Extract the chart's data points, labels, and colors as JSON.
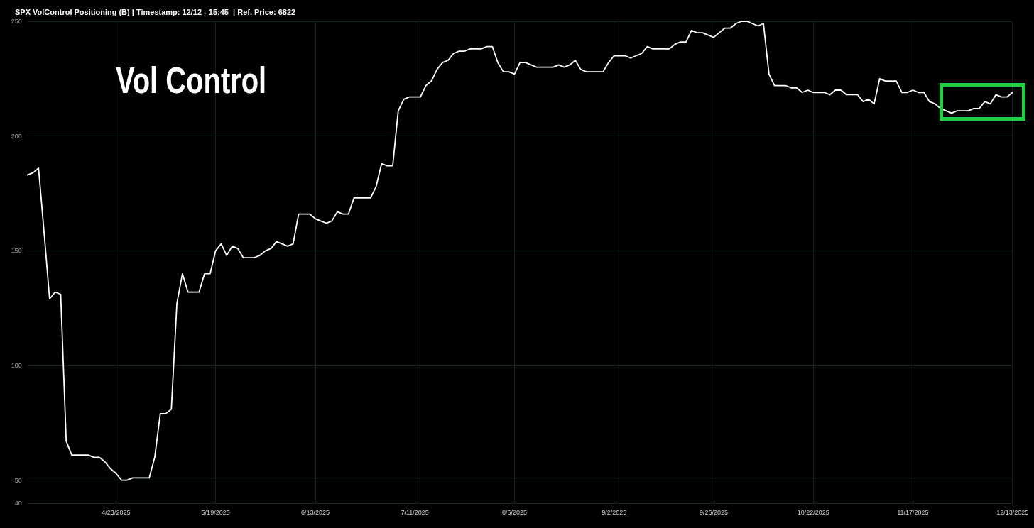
{
  "chart_data": {
    "type": "line",
    "title": "SPX VolControl Positioning (B) | Timestamp: 12/12 - 15:45  | Ref. Price: 6822",
    "annotations": [
      "Vol Control"
    ],
    "categories": [
      null,
      null,
      null,
      null,
      null,
      null,
      null,
      null,
      null,
      null,
      null,
      null,
      null,
      null,
      null,
      null,
      "4/23/2025",
      null,
      null,
      null,
      null,
      null,
      null,
      null,
      null,
      null,
      null,
      null,
      null,
      null,
      null,
      null,
      null,
      null,
      "5/19/2025",
      null,
      null,
      null,
      null,
      null,
      null,
      null,
      null,
      null,
      null,
      null,
      null,
      null,
      null,
      null,
      null,
      null,
      "6/13/2025",
      null,
      null,
      null,
      null,
      null,
      null,
      null,
      null,
      null,
      null,
      null,
      null,
      null,
      null,
      null,
      null,
      null,
      "7/11/2025",
      null,
      null,
      null,
      null,
      null,
      null,
      null,
      null,
      null,
      null,
      null,
      null,
      null,
      null,
      null,
      null,
      null,
      "8/6/2025",
      null,
      null,
      null,
      null,
      null,
      null,
      null,
      null,
      null,
      null,
      null,
      null,
      null,
      null,
      null,
      null,
      null,
      "9/2/2025",
      null,
      null,
      null,
      null,
      null,
      null,
      null,
      null,
      null,
      null,
      null,
      null,
      null,
      null,
      null,
      null,
      null,
      "9/26/2025",
      null,
      null,
      null,
      null,
      null,
      null,
      null,
      null,
      null,
      null,
      null,
      null,
      null,
      null,
      null,
      null,
      null,
      "10/22/2025",
      null,
      null,
      null,
      null,
      null,
      null,
      null,
      null,
      null,
      null,
      null,
      null,
      null,
      null,
      null,
      null,
      null,
      "11/17/2025",
      null,
      null,
      null,
      null,
      null,
      null,
      null,
      null,
      null,
      null,
      null,
      null,
      null,
      null,
      null,
      null,
      null,
      "12/13/2025"
    ],
    "values": [
      183,
      184,
      186,
      158,
      129,
      132,
      131,
      67,
      61,
      61,
      61,
      61,
      60,
      60,
      58,
      55,
      53,
      50,
      50,
      51,
      51,
      51,
      51,
      60,
      79,
      79,
      81,
      127,
      140,
      132,
      132,
      132,
      140,
      140,
      150,
      153,
      148,
      152,
      151,
      147,
      147,
      147,
      148,
      150,
      151,
      154,
      153,
      152,
      153,
      166,
      166,
      166,
      164,
      163,
      162,
      163,
      167,
      166,
      166,
      173,
      173,
      173,
      173,
      178,
      188,
      187,
      187,
      211,
      216,
      217,
      217,
      217,
      222,
      224,
      229,
      232,
      233,
      236,
      237,
      237,
      238,
      238,
      238,
      239,
      239,
      232,
      228,
      228,
      227,
      232,
      232,
      231,
      230,
      230,
      230,
      230,
      231,
      230,
      231,
      233,
      229,
      228,
      228,
      228,
      228,
      232,
      235,
      235,
      235,
      234,
      235,
      236,
      239,
      238,
      238,
      238,
      238,
      240,
      241,
      241,
      246,
      245,
      245,
      244,
      243,
      245,
      247,
      247,
      249,
      250,
      250,
      249,
      248,
      249,
      227,
      222,
      222,
      222,
      221,
      221,
      219,
      220,
      219,
      219,
      219,
      218,
      220,
      220,
      218,
      218,
      218,
      215,
      216,
      214,
      225,
      224,
      224,
      224,
      219,
      219,
      220,
      219,
      219,
      215,
      214,
      212,
      211,
      210,
      211,
      211,
      211,
      212,
      212,
      215,
      214,
      218,
      217,
      217,
      219
    ],
    "color": "#ffffff",
    "ylim": [
      40,
      250
    ],
    "yticks": [
      40,
      50,
      100,
      150,
      200,
      250
    ],
    "grid": true,
    "marker": "none",
    "line_style": "solid"
  }
}
